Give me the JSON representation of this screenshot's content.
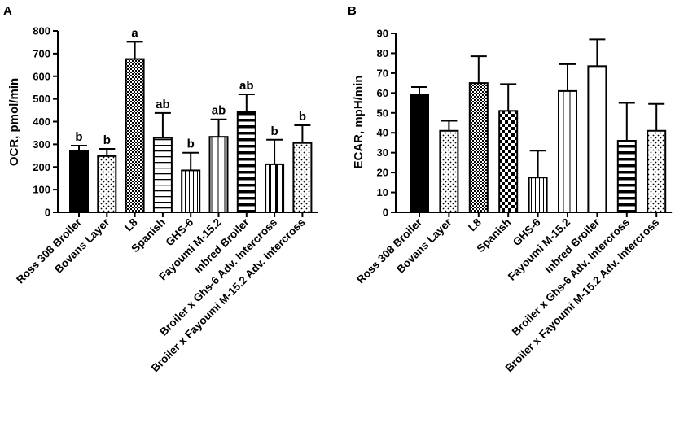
{
  "chart_data": [
    {
      "type": "bar",
      "panel_label": "A",
      "ylabel": "OCR, pmol/min",
      "ylim": [
        0,
        800
      ],
      "yticks": [
        0,
        100,
        200,
        300,
        400,
        500,
        600,
        700,
        800
      ],
      "categories": [
        "Ross 308 Broiler",
        "Bovans Layer",
        "L8",
        "Spanish",
        "GHS-6",
        "Fayoumi M-15.2",
        "Inbred Broiler",
        "Broiler x Ghs-6 Adv. Intercross",
        "Broiler x Fayoumi M-15.2 Adv. Intercross"
      ],
      "values": [
        272,
        248,
        676,
        328,
        185,
        333,
        442,
        212,
        306
      ],
      "errors": [
        22,
        32,
        76,
        110,
        78,
        77,
        78,
        108,
        78
      ],
      "patterns": [
        "solid",
        "dots",
        "crosshatch",
        "hlines",
        "vlines",
        "vlines-wide",
        "hlines-thick",
        "vlines-thick",
        "dots"
      ],
      "significance": [
        "b",
        "b",
        "a",
        "ab",
        "b",
        "ab",
        "ab",
        "b",
        "b"
      ]
    },
    {
      "type": "bar",
      "panel_label": "B",
      "ylabel": "ECAR, mpH/min",
      "ylim": [
        0,
        90
      ],
      "yticks": [
        0,
        10,
        20,
        30,
        40,
        50,
        60,
        70,
        80,
        90
      ],
      "categories": [
        "Ross 308 Broiler",
        "Bovans Layer",
        "L8",
        "Spanish",
        "GHS-6",
        "Fayoumi M-15.2",
        "Inbred Broiler",
        "Broiler x Ghs-6 Adv. Intercross",
        "Broiler x Fayoumi M-15.2 Adv. Intercross"
      ],
      "values": [
        59,
        41,
        65,
        51,
        17.5,
        61,
        73.5,
        36,
        41
      ],
      "errors": [
        4,
        5,
        13.5,
        13.5,
        13.5,
        13.5,
        13.5,
        19,
        13.5
      ],
      "patterns": [
        "solid",
        "dots",
        "crosshatch",
        "checker",
        "vlines",
        "vlines-wide",
        "white",
        "hlines-thick",
        "dots"
      ],
      "significance": []
    }
  ]
}
